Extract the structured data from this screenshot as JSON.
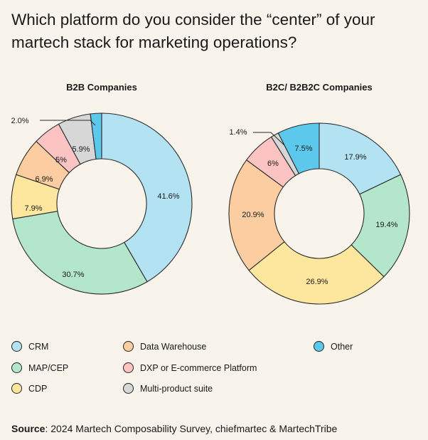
{
  "title": "Which platform do you consider the “center” of your martech stack for marketing operations?",
  "colors": {
    "CRM": "#b3e3f3",
    "MAP/CEP": "#b3e6cb",
    "CDP": "#fde79f",
    "Data Warehouse": "#fccda0",
    "DXP or E-commerce Platform": "#fbc3c2",
    "Multi-product suite": "#d7d7d7",
    "Other": "#5bc8ec"
  },
  "chart_data": [
    {
      "type": "pie",
      "title": "B2B Companies",
      "categories": [
        "CRM",
        "MAP/CEP",
        "CDP",
        "Data Warehouse",
        "DXP or E-commerce Platform",
        "Multi-product suite",
        "Other"
      ],
      "values": [
        41.6,
        30.7,
        7.9,
        6.9,
        5,
        5.9,
        2.0
      ],
      "labels": [
        "41.6%",
        "30.7%",
        "7.9%",
        "6.9%",
        "5%",
        "5.9%",
        "2.0%"
      ]
    },
    {
      "type": "pie",
      "title": "B2C/ B2B2C Companies",
      "categories": [
        "CRM",
        "MAP/CEP",
        "CDP",
        "Data Warehouse",
        "DXP or E-commerce Platform",
        "Multi-product suite",
        "Other"
      ],
      "values": [
        17.9,
        19.4,
        26.9,
        20.9,
        6,
        1.4,
        7.5
      ],
      "labels": [
        "17.9%",
        "19.4%",
        "26.9%",
        "20.9%",
        "6%",
        "1.4%",
        "7.5%"
      ]
    }
  ],
  "legend": [
    "CRM",
    "MAP/CEP",
    "CDP",
    "Data Warehouse",
    "DXP or E-commerce Platform",
    "Multi-product suite",
    "Other"
  ],
  "source": {
    "label": "Source",
    "text": ": 2024 Martech Composability Survey, chiefmartec & MartechTribe"
  }
}
